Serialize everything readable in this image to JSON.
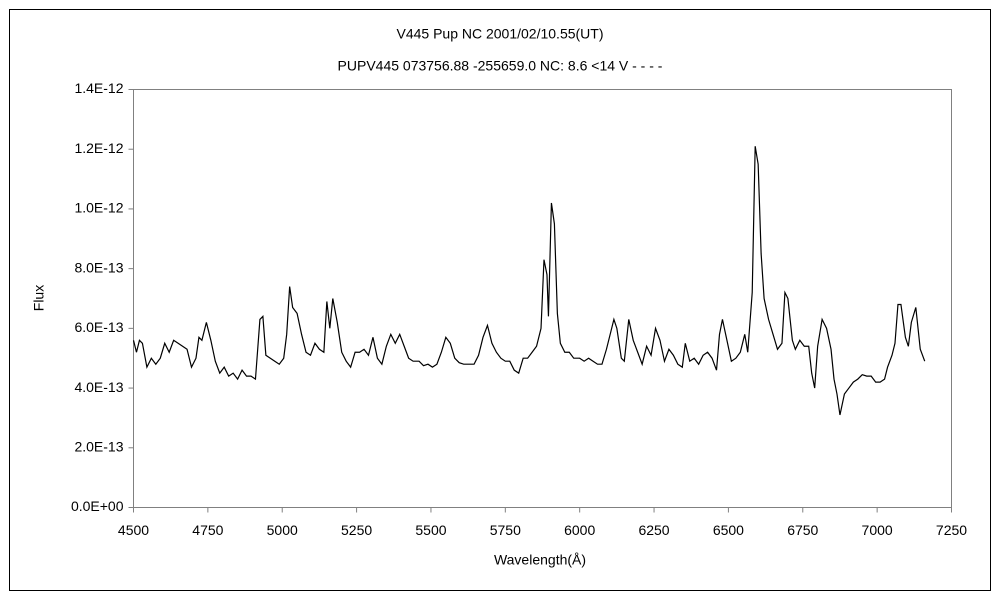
{
  "chart_data": {
    "type": "line",
    "title": "V445 Pup    NC    2001/02/10.55(UT)",
    "subtitle": "PUPV445 073756.88 -255659.0 NC: 8.6 <14 V - - - -",
    "x_label": "Wavelength(Å)",
    "y_label": "Flux",
    "color": "#000000",
    "xlim": [
      4500,
      7250
    ],
    "xticks": [
      4500,
      4750,
      5000,
      5250,
      5500,
      5750,
      6000,
      6250,
      6500,
      6750,
      7000,
      7250
    ],
    "ylim": [
      0,
      1.4e-12
    ],
    "yticks": [
      {
        "value": 0,
        "label": "0.0E+00"
      },
      {
        "value": 2e-13,
        "label": "2.0E-13"
      },
      {
        "value": 4e-13,
        "label": "4.0E-13"
      },
      {
        "value": 6e-13,
        "label": "6.0E-13"
      },
      {
        "value": 8e-13,
        "label": "8.0E-13"
      },
      {
        "value": 1e-12,
        "label": "1.0E-12"
      },
      {
        "value": 1.2e-12,
        "label": "1.2E-12"
      },
      {
        "value": 1.4e-12,
        "label": "1.4E-12"
      }
    ],
    "x": [
      4500,
      4510,
      4520,
      4530,
      4545,
      4560,
      4575,
      4590,
      4605,
      4620,
      4635,
      4650,
      4665,
      4680,
      4695,
      4710,
      4720,
      4730,
      4745,
      4760,
      4775,
      4790,
      4805,
      4820,
      4835,
      4850,
      4865,
      4880,
      4895,
      4910,
      4925,
      4935,
      4945,
      4960,
      4975,
      4990,
      5005,
      5015,
      5025,
      5035,
      5050,
      5065,
      5080,
      5095,
      5110,
      5125,
      5140,
      5150,
      5160,
      5170,
      5185,
      5200,
      5215,
      5230,
      5245,
      5260,
      5275,
      5290,
      5305,
      5320,
      5335,
      5350,
      5365,
      5380,
      5395,
      5410,
      5425,
      5440,
      5460,
      5475,
      5490,
      5505,
      5520,
      5535,
      5550,
      5565,
      5580,
      5595,
      5610,
      5630,
      5645,
      5660,
      5675,
      5690,
      5705,
      5720,
      5735,
      5750,
      5765,
      5780,
      5795,
      5810,
      5825,
      5840,
      5855,
      5870,
      5880,
      5890,
      5895,
      5905,
      5915,
      5925,
      5935,
      5950,
      5965,
      5980,
      6000,
      6015,
      6030,
      6045,
      6060,
      6075,
      6090,
      6105,
      6115,
      6125,
      6140,
      6150,
      6165,
      6180,
      6195,
      6210,
      6225,
      6240,
      6255,
      6270,
      6285,
      6300,
      6315,
      6330,
      6345,
      6355,
      6370,
      6385,
      6400,
      6415,
      6430,
      6445,
      6460,
      6470,
      6480,
      6495,
      6510,
      6525,
      6540,
      6555,
      6565,
      6580,
      6590,
      6600,
      6610,
      6620,
      6635,
      6650,
      6665,
      6680,
      6690,
      6700,
      6715,
      6725,
      6740,
      6755,
      6770,
      6780,
      6790,
      6800,
      6815,
      6830,
      6845,
      6855,
      6865,
      6875,
      6890,
      6905,
      6920,
      6935,
      6950,
      6965,
      6980,
      6995,
      7010,
      7025,
      7035,
      7050,
      7060,
      7070,
      7080,
      7095,
      7105,
      7115,
      7130,
      7145,
      7160
    ],
    "values": [
      5.6e-13,
      5.2e-13,
      5.6e-13,
      5.5e-13,
      4.7e-13,
      5e-13,
      4.8e-13,
      5e-13,
      5.5e-13,
      5.2e-13,
      5.6e-13,
      5.5e-13,
      5.4e-13,
      5.3e-13,
      4.7e-13,
      5e-13,
      5.7e-13,
      5.6e-13,
      6.2e-13,
      5.6e-13,
      4.9e-13,
      4.5e-13,
      4.7e-13,
      4.4e-13,
      4.5e-13,
      4.3e-13,
      4.6e-13,
      4.4e-13,
      4.4e-13,
      4.3e-13,
      6.3e-13,
      6.4e-13,
      5.1e-13,
      5e-13,
      4.9e-13,
      4.8e-13,
      5e-13,
      5.8e-13,
      7.4e-13,
      6.7e-13,
      6.5e-13,
      5.8e-13,
      5.2e-13,
      5.1e-13,
      5.5e-13,
      5.3e-13,
      5.2e-13,
      6.9e-13,
      6e-13,
      7e-13,
      6.2e-13,
      5.2e-13,
      4.9e-13,
      4.7e-13,
      5.2e-13,
      5.2e-13,
      5.3e-13,
      5.1e-13,
      5.7e-13,
      5e-13,
      4.8e-13,
      5.4e-13,
      5.8e-13,
      5.5e-13,
      5.8e-13,
      5.4e-13,
      5e-13,
      4.9e-13,
      4.9e-13,
      4.75e-13,
      4.8e-13,
      4.7e-13,
      4.8e-13,
      5.2e-13,
      5.7e-13,
      5.5e-13,
      5e-13,
      4.85e-13,
      4.8e-13,
      4.8e-13,
      4.8e-13,
      5.1e-13,
      5.7e-13,
      6.1e-13,
      5.5e-13,
      5.2e-13,
      5e-13,
      4.9e-13,
      4.9e-13,
      4.6e-13,
      4.5e-13,
      5e-13,
      5e-13,
      5.2e-13,
      5.4e-13,
      6e-13,
      8.3e-13,
      7.8e-13,
      6.4e-13,
      1.02e-12,
      9.5e-13,
      6.5e-13,
      5.5e-13,
      5.2e-13,
      5.2e-13,
      5e-13,
      5e-13,
      4.9e-13,
      5e-13,
      4.9e-13,
      4.8e-13,
      4.8e-13,
      5.3e-13,
      5.9e-13,
      6.3e-13,
      6e-13,
      5e-13,
      4.9e-13,
      6.3e-13,
      5.6e-13,
      5.2e-13,
      4.8e-13,
      5.4e-13,
      5.1e-13,
      6e-13,
      5.6e-13,
      4.9e-13,
      5.3e-13,
      5.1e-13,
      4.8e-13,
      4.7e-13,
      5.5e-13,
      4.9e-13,
      5e-13,
      4.8e-13,
      5.1e-13,
      5.2e-13,
      5e-13,
      4.6e-13,
      5.8e-13,
      6.3e-13,
      5.6e-13,
      4.9e-13,
      5e-13,
      5.2e-13,
      5.8e-13,
      5.2e-13,
      7.2e-13,
      1.21e-12,
      1.15e-12,
      8.5e-13,
      7e-13,
      6.3e-13,
      5.8e-13,
      5.3e-13,
      5.5e-13,
      7.2e-13,
      7e-13,
      5.6e-13,
      5.3e-13,
      5.6e-13,
      5.4e-13,
      5.4e-13,
      4.5e-13,
      4e-13,
      5.4e-13,
      6.3e-13,
      6e-13,
      5.3e-13,
      4.3e-13,
      3.8e-13,
      3.1e-13,
      3.8e-13,
      4e-13,
      4.2e-13,
      4.3e-13,
      4.45e-13,
      4.4e-13,
      4.4e-13,
      4.2e-13,
      4.2e-13,
      4.3e-13,
      4.7e-13,
      5.1e-13,
      5.5e-13,
      6.8e-13,
      6.8e-13,
      5.7e-13,
      5.4e-13,
      6.2e-13,
      6.7e-13,
      5.3e-13,
      4.9e-13
    ]
  }
}
